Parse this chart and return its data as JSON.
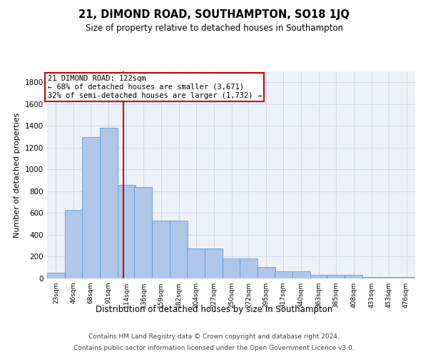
{
  "title": "21, DIMOND ROAD, SOUTHAMPTON, SO18 1JQ",
  "subtitle": "Size of property relative to detached houses in Southampton",
  "xlabel": "Distribution of detached houses by size in Southampton",
  "ylabel": "Number of detached properties",
  "bins": [
    23,
    46,
    68,
    91,
    114,
    136,
    159,
    182,
    204,
    227,
    250,
    272,
    295,
    317,
    340,
    363,
    385,
    408,
    431,
    453,
    476
  ],
  "values": [
    50,
    630,
    1300,
    1380,
    860,
    840,
    530,
    530,
    275,
    275,
    185,
    185,
    105,
    65,
    65,
    35,
    35,
    35,
    15,
    15,
    15
  ],
  "bar_color": "#aec6e8",
  "bar_edge_color": "#5b9bd5",
  "grid_color": "#d0d8e8",
  "background_color": "#eef2f8",
  "property_line_x": 122,
  "property_line_color": "#cc0000",
  "annotation_box_color": "#cc0000",
  "annotation_text": "21 DIMOND ROAD: 122sqm\n← 68% of detached houses are smaller (3,671)\n32% of semi-detached houses are larger (1,732) →",
  "ylim": [
    0,
    1900
  ],
  "yticks": [
    0,
    200,
    400,
    600,
    800,
    1000,
    1200,
    1400,
    1600,
    1800
  ],
  "footer_line1": "Contains HM Land Registry data © Crown copyright and database right 2024.",
  "footer_line2": "Contains public sector information licensed under the Open Government Licence v3.0."
}
